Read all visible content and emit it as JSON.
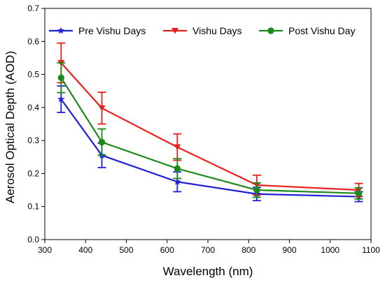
{
  "chart_data": {
    "type": "line",
    "xlabel": "Wavelength (nm)",
    "ylabel": "Aerosol Optical Depth (AOD)",
    "xlim": [
      300,
      1100
    ],
    "ylim": [
      0.0,
      0.7
    ],
    "xticks": [
      300,
      400,
      500,
      600,
      700,
      800,
      900,
      1000,
      1100
    ],
    "yticks": [
      0.0,
      0.1,
      0.2,
      0.3,
      0.4,
      0.5,
      0.6,
      0.7
    ],
    "ytick_labels": [
      "0.0",
      "0.1",
      "0.2",
      "0.3",
      "0.4",
      "0.5",
      "0.6",
      "0.7"
    ],
    "grid": false,
    "legend_position": "top",
    "series": [
      {
        "name": "Pre Vishu Days",
        "color": "#1f1fd6",
        "marker": "star",
        "x": [
          340,
          440,
          625,
          820,
          1070
        ],
        "y": [
          0.425,
          0.255,
          0.175,
          0.138,
          0.13
        ],
        "err": [
          0.04,
          0.037,
          0.03,
          0.02,
          0.015
        ]
      },
      {
        "name": "Vishu Days",
        "color": "#e8201c",
        "marker": "triangle-down",
        "x": [
          340,
          440,
          625,
          820,
          1070
        ],
        "y": [
          0.535,
          0.398,
          0.28,
          0.165,
          0.15
        ],
        "err": [
          0.06,
          0.048,
          0.04,
          0.03,
          0.02
        ]
      },
      {
        "name": "Post Vishu Day",
        "color": "#1a8a1a",
        "marker": "circle",
        "x": [
          340,
          440,
          625,
          820,
          1070
        ],
        "y": [
          0.49,
          0.295,
          0.215,
          0.15,
          0.14
        ],
        "err": [
          0.045,
          0.04,
          0.03,
          0.022,
          0.017
        ]
      }
    ]
  }
}
